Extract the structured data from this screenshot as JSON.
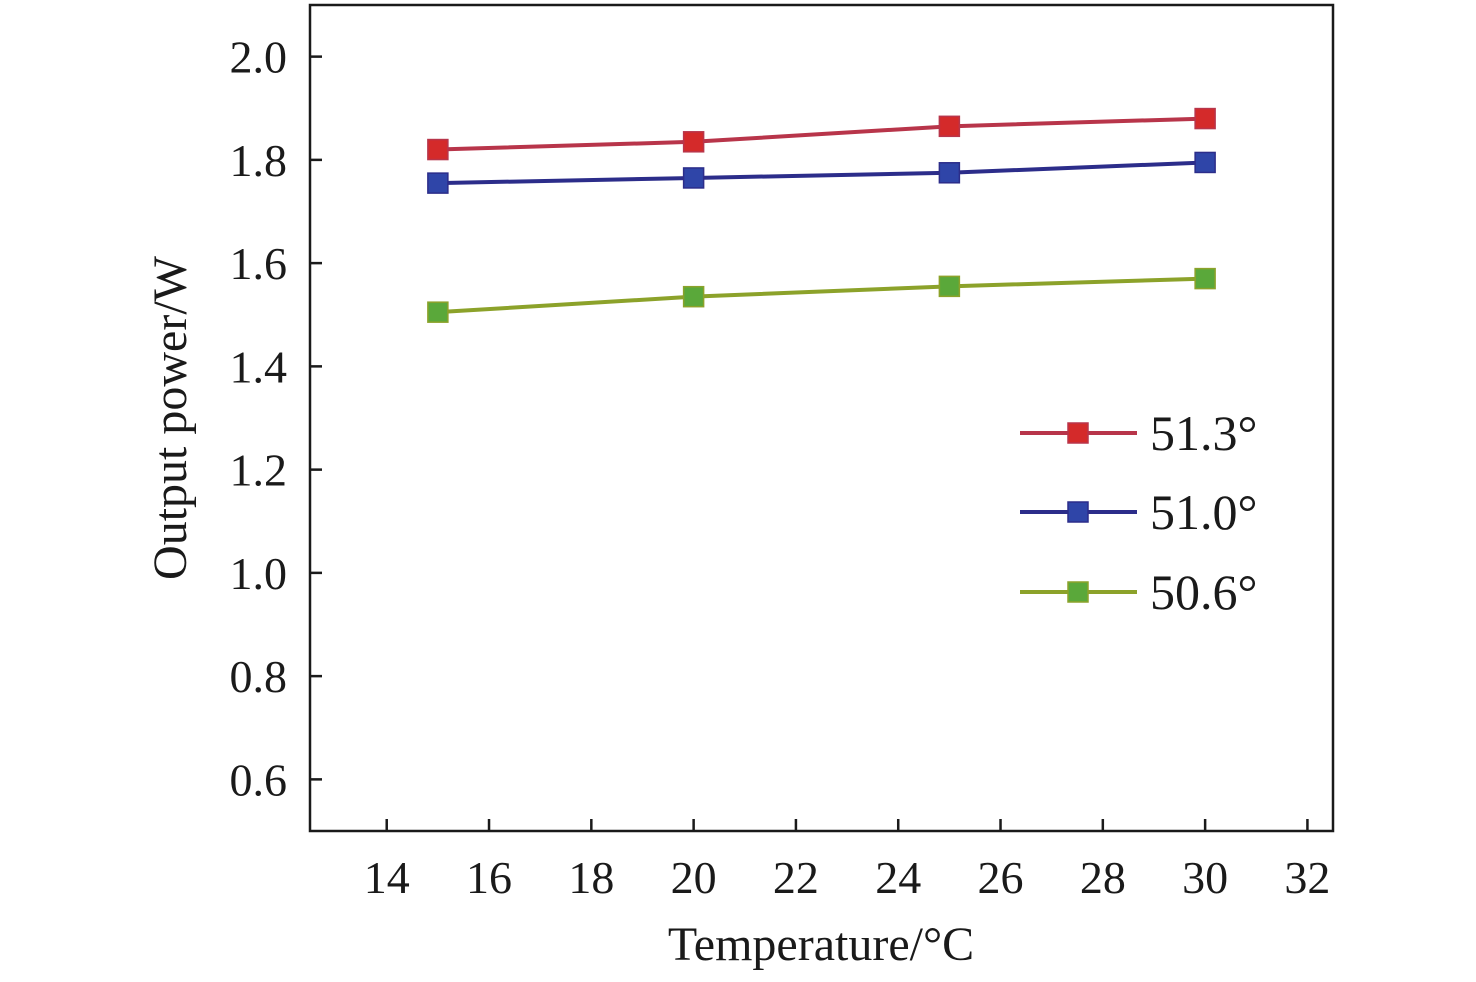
{
  "chart_data": {
    "type": "line",
    "xlabel": "Temperature/°C",
    "ylabel": "Output power/W",
    "xlim": [
      12.5,
      32.5
    ],
    "ylim": [
      0.5,
      2.1
    ],
    "xticks": [
      14,
      16,
      18,
      20,
      22,
      24,
      26,
      28,
      30,
      32
    ],
    "yticks": [
      0.6,
      0.8,
      1.0,
      1.2,
      1.4,
      1.6,
      1.8,
      2.0
    ],
    "xtick_labels": [
      "14",
      "16",
      "18",
      "20",
      "22",
      "24",
      "26",
      "28",
      "30",
      "32"
    ],
    "ytick_labels": [
      "0.6",
      "0.8",
      "1.0",
      "1.2",
      "1.4",
      "1.6",
      "1.8",
      "2.0"
    ],
    "grid": false,
    "legend_position": "right",
    "x": [
      15,
      20,
      25,
      30
    ],
    "series": [
      {
        "name": "51.3°",
        "values": [
          1.82,
          1.835,
          1.865,
          1.88
        ],
        "line_color": "#b8354a",
        "marker_color": "#d42a2a"
      },
      {
        "name": "51.0°",
        "values": [
          1.755,
          1.765,
          1.775,
          1.795
        ],
        "line_color": "#2c2d8a",
        "marker_color": "#2f45a8"
      },
      {
        "name": "50.6°",
        "values": [
          1.505,
          1.535,
          1.555,
          1.57
        ],
        "line_color": "#8ca22a",
        "marker_color": "#5aa83a"
      }
    ]
  }
}
